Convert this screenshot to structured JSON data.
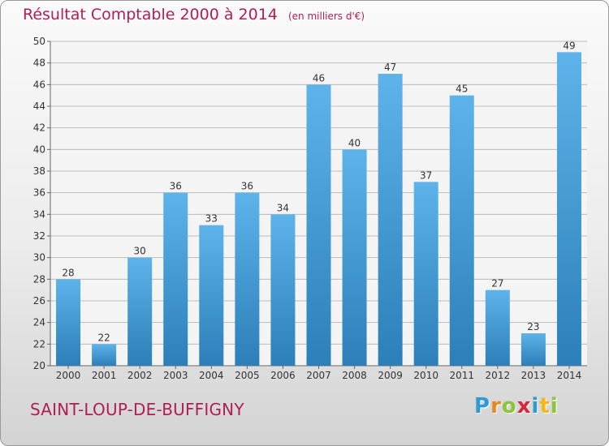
{
  "title": "Résultat Comptable 2000 à 2014",
  "unit_note": "(en milliers d'€)",
  "commune": "SAINT-LOUP-DE-BUFFIGNY",
  "logo": {
    "letters": [
      "P",
      "r",
      "o",
      "x",
      "i",
      "t",
      "i"
    ],
    "colors": [
      "#2f9ad4",
      "#e58a1c",
      "#8cc43a",
      "#d7263d",
      "#2f9ad4",
      "#f2b818",
      "#8cc43a"
    ]
  },
  "colors": {
    "title": "#b01e56",
    "bar_top": "#5eb3ea",
    "bar_bottom": "#2c7fb8",
    "grid": "#bcbcbc",
    "axis_text": "#333333"
  },
  "chart_data": {
    "type": "bar",
    "title": "Résultat Comptable 2000 à 2014",
    "categories": [
      "2000",
      "2001",
      "2002",
      "2003",
      "2004",
      "2005",
      "2006",
      "2007",
      "2008",
      "2009",
      "2010",
      "2011",
      "2012",
      "2013",
      "2014"
    ],
    "values": [
      28,
      22,
      30,
      36,
      33,
      36,
      34,
      46,
      40,
      47,
      37,
      45,
      27,
      23,
      49
    ],
    "ylim": [
      20,
      50
    ],
    "yticks": [
      20,
      22,
      24,
      26,
      28,
      30,
      32,
      34,
      36,
      38,
      40,
      42,
      44,
      46,
      48,
      50
    ],
    "xlabel": "",
    "ylabel": "",
    "grid": true
  }
}
